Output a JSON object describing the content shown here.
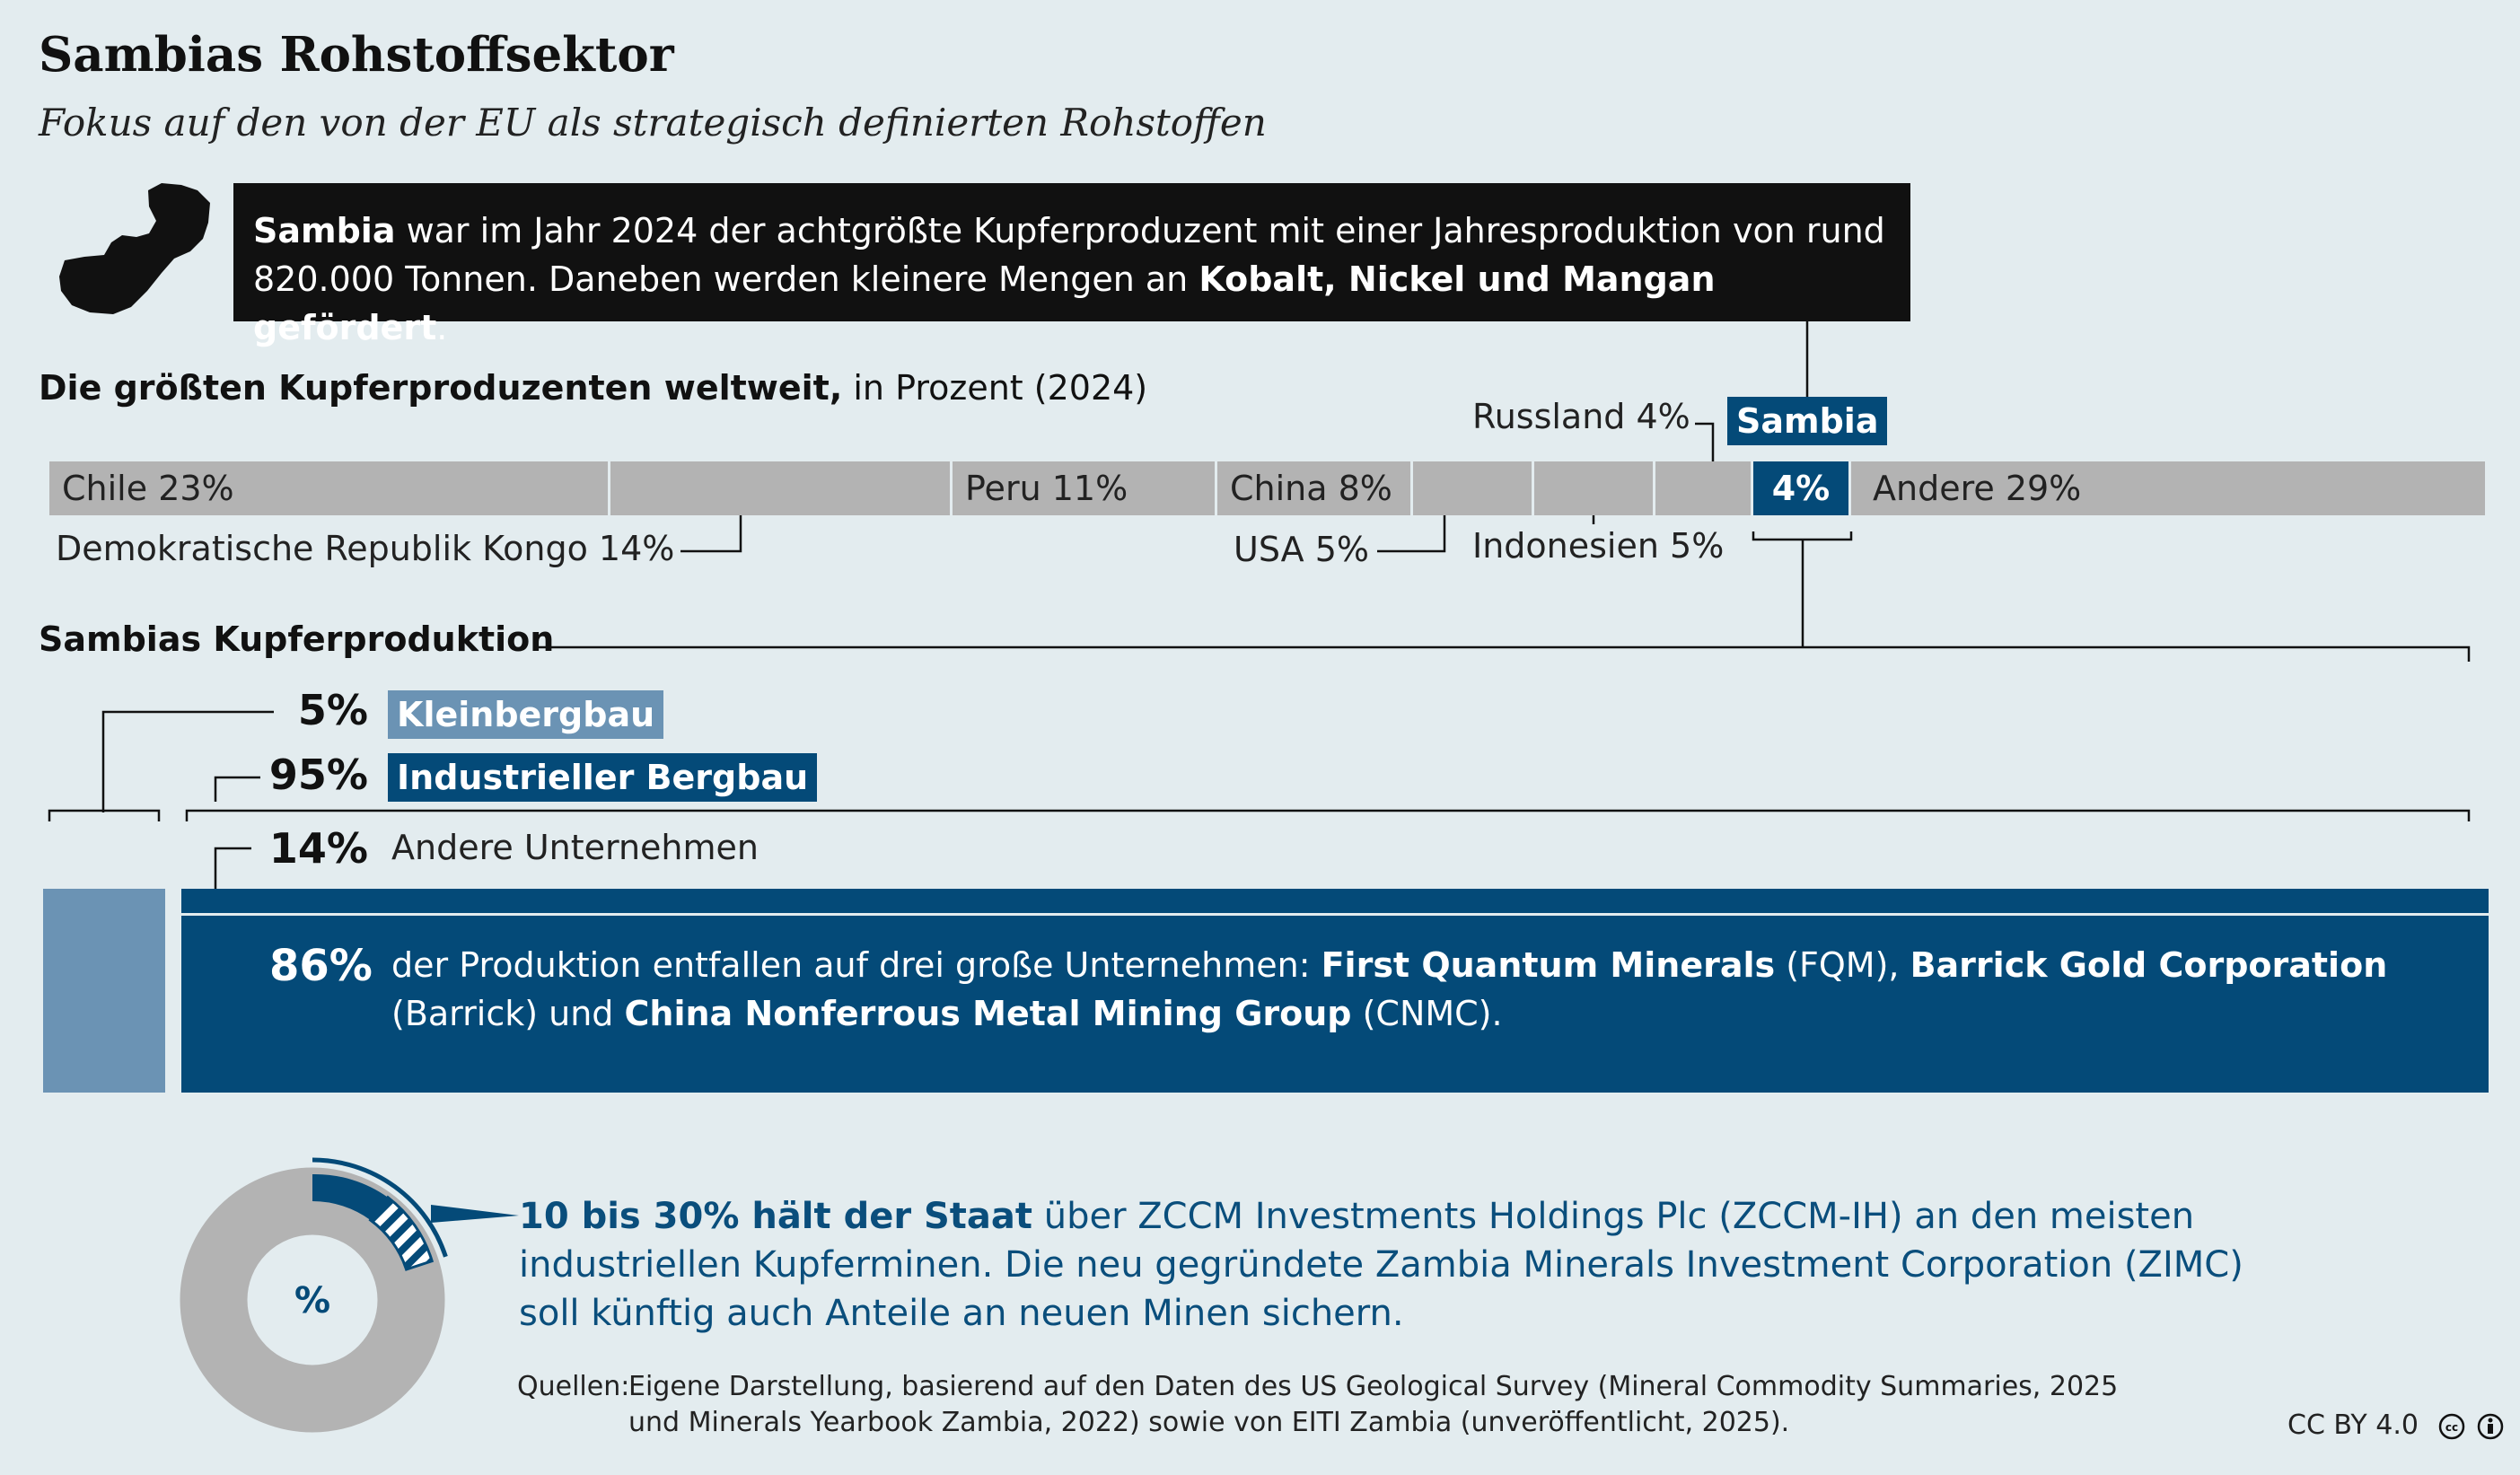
{
  "header": {
    "title": "Sambias Rohstoffsektor",
    "subtitle": "Fokus auf den von der EU als strategisch definierten Rohstoffen"
  },
  "infobox": {
    "part1_bold": "Sambia",
    "part2": " war im Jahr 2024 der achtgrößte Kupferproduzent mit einer Jahresproduktion von rund 820.000 Tonnen. Daneben werden kleinere Mengen an ",
    "part3_bold": "Kobalt, Nickel und Mangan gefördert",
    "part4": "."
  },
  "chart_data": [
    {
      "type": "bar",
      "title": "Die größten Kupferproduzenten weltweit,",
      "subtitle": " in Prozent (2024)",
      "orientation": "stacked-horizontal",
      "categories": [
        "Chile",
        "Demokratische Republik Kongo",
        "Peru",
        "China",
        "USA",
        "Indonesien",
        "Russland",
        "Sambia",
        "Andere"
      ],
      "values": [
        23,
        14,
        11,
        8,
        5,
        5,
        4,
        4,
        29
      ],
      "labels": [
        "Chile 23%",
        "Demokratische Republik Kongo 14%",
        "Peru 11%",
        "China 8%",
        "USA 5%",
        "Indonesien 5%",
        "Russland 4%",
        "4%",
        "Andere 29%"
      ],
      "highlight": "Sambia",
      "highlight_tag": "Sambia",
      "colors": {
        "default": "#b3b3b3",
        "highlight": "#044a78"
      }
    },
    {
      "type": "bar",
      "title": "Sambias Kupferproduktion",
      "orientation": "stacked-horizontal",
      "series": [
        {
          "name": "Kleinbergbau",
          "pct_label": "5%",
          "value": 5,
          "color": "#6b93b4"
        },
        {
          "name": "Industrieller Bergbau",
          "pct_label": "95%",
          "value": 95,
          "color": "#044a78"
        }
      ],
      "industrial_breakdown": [
        {
          "pct_label": "14%",
          "value": 14,
          "label": "Andere Unternehmen"
        },
        {
          "pct_label": "86%",
          "value": 86,
          "label_plain1": "der Produktion entfallen auf drei große Unternehmen: ",
          "label_bold1": "First Quantum Minerals",
          "label_plain2": " (FQM), ",
          "label_bold2": "Barrick Gold Corporation",
          "label_plain3": " (Barrick) und ",
          "label_bold3": "China Nonferrous Metal Mining Group",
          "label_plain4": " (CNMC)."
        }
      ]
    },
    {
      "type": "pie",
      "center_label": "%",
      "state_share_range": [
        10,
        30
      ],
      "colors": {
        "ring": "#b3b3b3",
        "state": "#044a78"
      }
    }
  ],
  "state_text": {
    "bold": "10 bis 30% hält der Staat",
    "rest": " über ZCCM Investments Holdings Plc (ZCCM-IH) an den meisten industriellen Kupferminen. Die neu gegründete Zambia Minerals Investment Corporation (ZIMC) soll künftig auch Anteile an neuen Minen sichern."
  },
  "footer": {
    "source_label": "Quellen:",
    "source_text": "Eigene Darstellung, basierend auf den Daten des US Geological Survey (Mineral Commodity Summaries, 2025 und Minerals Yearbook Zambia, 2022) sowie von EITI Zambia (unveröffentlicht, 2025).",
    "license": "CC BY 4.0"
  },
  "icons": [
    "zambia-map-icon",
    "cc-icon",
    "by-icon"
  ]
}
